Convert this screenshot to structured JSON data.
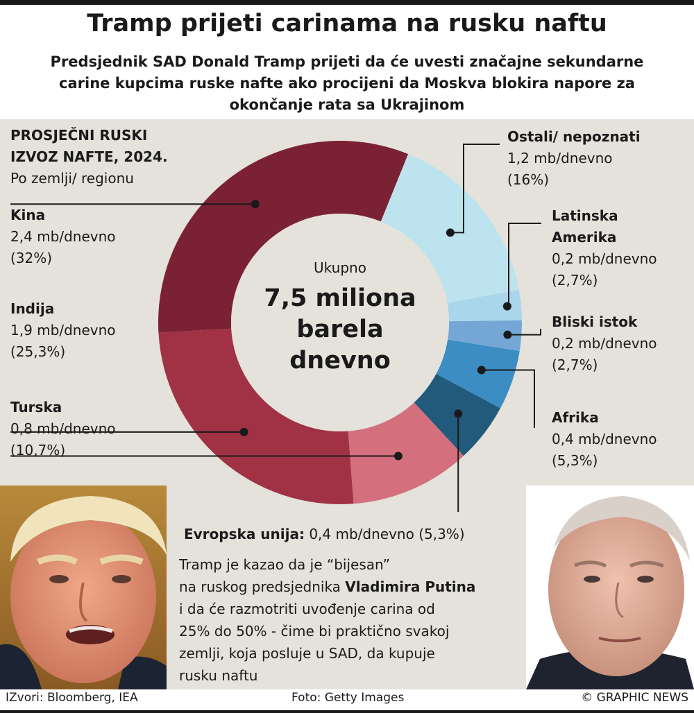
{
  "title": "Tramp prijeti carinama na rusku naftu",
  "subtitle": "Predsjednik SAD Donald Tramp prijeti da će uvesti značajne sekundarne carine kupcima ruske nafte ako procijeni da Moskva blokira napore za okončanje rata sa Ukrajinom",
  "chart_heading": {
    "line1": "PROSJEČNI RUSKI",
    "line2": "IZVOZ NAFTE, 2024.",
    "line3": "Po zemlji/ regionu"
  },
  "center": {
    "label": "Ukupno",
    "value_lines": [
      "7,5 miliona",
      "barela",
      "dnevno"
    ]
  },
  "chart_data": {
    "type": "pie",
    "donut": true,
    "unit": "mb/dnevno",
    "slices": [
      {
        "name": "Kina",
        "value": 2.4,
        "value_text": "2,4 mb/dnevno",
        "percent": 32,
        "percent_text": "(32%)",
        "color": "#7a2233"
      },
      {
        "name": "Indija",
        "value": 1.9,
        "value_text": "1,9 mb/dnevno",
        "percent": 25.3,
        "percent_text": "(25,3%)",
        "color": "#a13245"
      },
      {
        "name": "Turska",
        "value": 0.8,
        "value_text": "0,8 mb/dnevno",
        "percent": 10.7,
        "percent_text": "(10,7%)",
        "color": "#d4707e"
      },
      {
        "name": "Evropska unija",
        "value": 0.4,
        "value_text": "0,4 mb/dnevno (5,3%)",
        "percent": 5.3,
        "percent_text": "(5,3%)",
        "color": "#225a7c"
      },
      {
        "name": "Afrika",
        "value": 0.4,
        "value_text": "0,4 mb/dnevno",
        "percent": 5.3,
        "percent_text": "(5,3%)",
        "color": "#3b8dc4"
      },
      {
        "name": "Bliski istok",
        "value": 0.2,
        "value_text": "0,2 mb/dnevno",
        "percent": 2.7,
        "percent_text": "(2,7%)",
        "color": "#74a7d6"
      },
      {
        "name_lines": [
          "Latinska",
          "Amerika"
        ],
        "name": "Latinska Amerika",
        "value": 0.2,
        "value_text": "0,2 mb/dnevno",
        "percent": 2.7,
        "percent_text": "(2,7%)",
        "color": "#a9d6ea"
      },
      {
        "name": "Ostali/ nepoznati",
        "value": 1.2,
        "value_text": "1,2 mb/dnevno",
        "percent": 16,
        "percent_text": "(16%)",
        "color": "#bde3ef"
      }
    ]
  },
  "text_block": {
    "line1": "Tramp je kazao da je “bijesan”",
    "line2_prefix": "na ruskog predsjednika ",
    "line2_bold": "Vladimira Putina",
    "line3": "i da će razmotriti uvođenje carina od",
    "line4": "25% do 50% - čime bi praktično svakoj",
    "line5": "zemlji, koja posluje u SAD, da kupuje",
    "line6": "rusku naftu"
  },
  "footer": {
    "sources": "IZvori: Bloomberg, IEA",
    "photo": "Foto: Getty Images",
    "copyright": "© GRAPHIC NEWS"
  }
}
